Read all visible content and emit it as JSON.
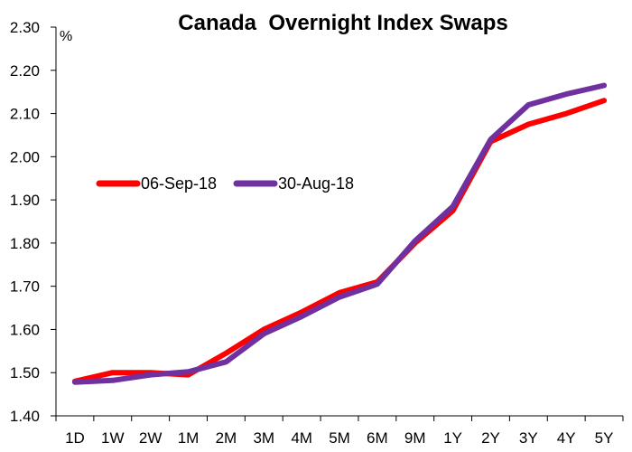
{
  "chart_data": {
    "type": "line",
    "title": "Canada  Overnight Index Swaps",
    "ylabel": "%",
    "xlabel": "",
    "categories": [
      "1D",
      "1W",
      "2W",
      "1M",
      "2M",
      "3M",
      "4M",
      "5M",
      "6M",
      "9M",
      "1Y",
      "2Y",
      "3Y",
      "4Y",
      "5Y"
    ],
    "ylim": [
      1.4,
      2.3
    ],
    "yticks": [
      "1.40",
      "1.50",
      "1.60",
      "1.70",
      "1.80",
      "1.90",
      "2.00",
      "2.10",
      "2.20",
      "2.30"
    ],
    "grid": false,
    "legend_position": "middle-left",
    "series": [
      {
        "name": "06-Sep-18",
        "color": "#ff0000",
        "values": [
          1.48,
          1.5,
          1.5,
          1.495,
          1.545,
          1.6,
          1.64,
          1.685,
          1.71,
          1.8,
          1.875,
          2.035,
          2.075,
          2.1,
          2.13
        ]
      },
      {
        "name": "30-Aug-18",
        "color": "#7030a0",
        "values": [
          1.478,
          1.482,
          1.495,
          1.502,
          1.525,
          1.59,
          1.63,
          1.675,
          1.705,
          1.805,
          1.885,
          2.04,
          2.12,
          2.145,
          2.165
        ]
      }
    ]
  }
}
